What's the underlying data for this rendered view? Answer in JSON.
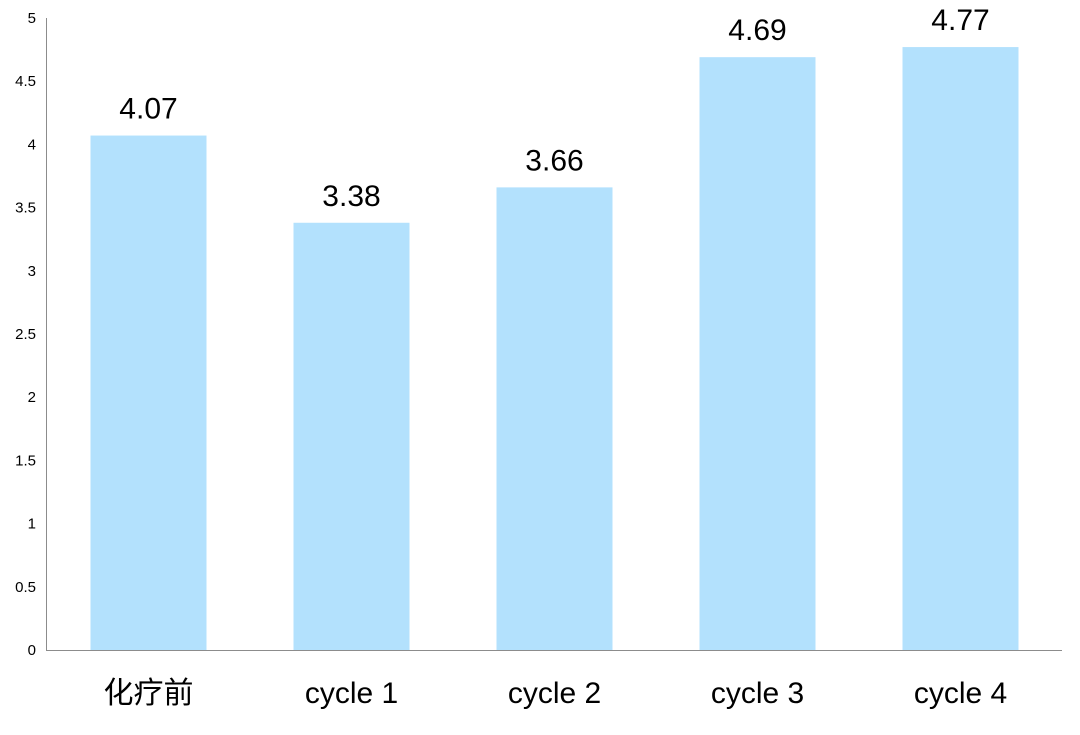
{
  "chart_data": {
    "type": "bar",
    "categories": [
      "化疗前",
      "cycle 1",
      "cycle 2",
      "cycle 3",
      "cycle 4"
    ],
    "values": [
      4.07,
      3.38,
      3.66,
      4.69,
      4.77
    ],
    "data_labels": [
      "4.07",
      "3.38",
      "3.66",
      "4.69",
      "4.77"
    ],
    "y_ticks": [
      "0",
      "0.5",
      "1",
      "1.5",
      "2",
      "2.5",
      "3",
      "3.5",
      "4",
      "4.5",
      "5"
    ],
    "ylim": [
      0,
      5
    ],
    "bar_color": "#b3e1fd",
    "grid": false,
    "legend": "none"
  }
}
